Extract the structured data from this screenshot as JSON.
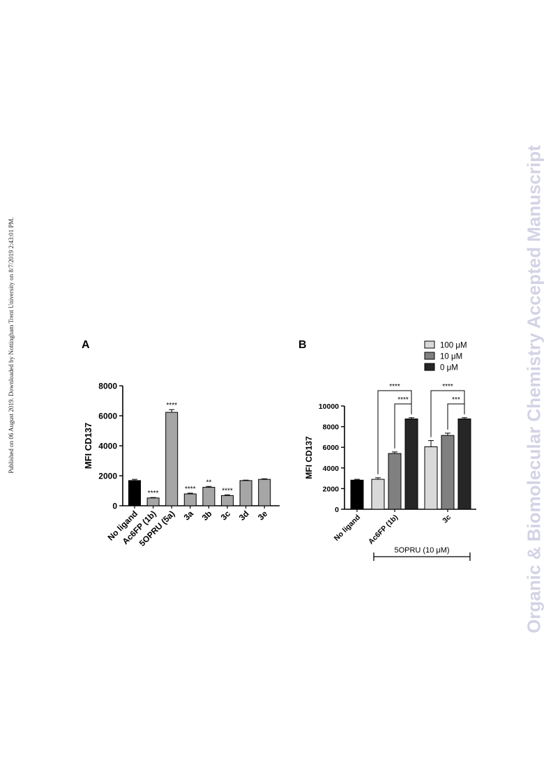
{
  "page": {
    "side_note": "Published on 06 August 2019. Downloaded by Nottingham Trent University on 8/7/2019 2:43:01 PM.",
    "watermark": "Organic & Biomolecular Chemistry Accepted Manuscript"
  },
  "chart_data": [
    {
      "panel": "A",
      "type": "bar",
      "ylabel": "MFI CD137",
      "xlabel": "",
      "ylim": [
        0,
        8000
      ],
      "yticks": [
        0,
        2000,
        4000,
        6000,
        8000
      ],
      "categories": [
        "No ligand",
        "Ac6FP (1b)",
        "5OPRU (5a)",
        "3a",
        "3b",
        "3c",
        "3d",
        "3e"
      ],
      "values": [
        1680,
        520,
        6230,
        790,
        1230,
        680,
        1680,
        1760
      ],
      "errors": [
        80,
        30,
        180,
        50,
        60,
        50,
        30,
        40
      ],
      "significance": [
        "",
        "****",
        "****",
        "****",
        "**",
        "****",
        "",
        ""
      ],
      "colors": [
        "#000000",
        "#a6a6a6",
        "#a6a6a6",
        "#a6a6a6",
        "#a6a6a6",
        "#a6a6a6",
        "#a6a6a6",
        "#a6a6a6"
      ]
    },
    {
      "panel": "B",
      "type": "bar",
      "ylabel": "MFI CD137",
      "xlabel": "",
      "ylim": [
        0,
        10000
      ],
      "yticks": [
        0,
        2000,
        4000,
        6000,
        8000,
        10000
      ],
      "categories": [
        "No ligand",
        "Ac6FP (1b)",
        "3c"
      ],
      "control": {
        "value": 2820,
        "error": 80,
        "color": "#000000"
      },
      "series": [
        {
          "name": "100 μM",
          "color": "#d9d9d9",
          "values": [
            null,
            2900,
            6050
          ],
          "errors": [
            null,
            150,
            600
          ]
        },
        {
          "name": "10 μM",
          "color": "#808080",
          "values": [
            null,
            5400,
            7150
          ],
          "errors": [
            null,
            150,
            220
          ]
        },
        {
          "name": "0 μM",
          "color": "#262626",
          "values": [
            null,
            8750,
            8750
          ],
          "errors": [
            null,
            120,
            120
          ]
        }
      ],
      "brackets": [
        {
          "group": "Ac6FP (1b)",
          "from": "100 μM",
          "to": "0 μM",
          "label": "****"
        },
        {
          "group": "Ac6FP (1b)",
          "from": "10 μM",
          "to": "0 μM",
          "label": "****"
        },
        {
          "group": "3c",
          "from": "100 μM",
          "to": "0 μM",
          "label": "****"
        },
        {
          "group": "3c",
          "from": "10 μM",
          "to": "0 μM",
          "label": "***"
        }
      ],
      "footer_label": "5OPRU (10 μM)",
      "legend_position": "top-right"
    }
  ]
}
